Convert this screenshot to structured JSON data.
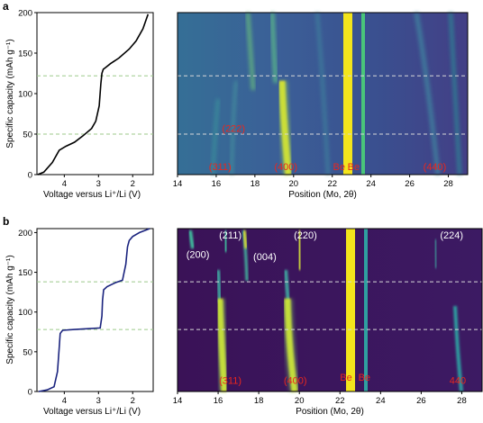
{
  "chart_data": [
    {
      "panel": "a",
      "type": "line",
      "ylabel": "Specific capacity (mAh g⁻¹)",
      "xlabel": "Voltage versus Li⁺/Li (V)",
      "xlim": [
        4.8,
        1.4
      ],
      "ylim": [
        0,
        200
      ],
      "xticks": [
        "4",
        "3",
        "2"
      ],
      "yticks": [
        "0",
        "50",
        "100",
        "150",
        "200"
      ],
      "series": [
        {
          "color": "#000000",
          "x": [
            4.78,
            4.6,
            4.35,
            4.15,
            3.95,
            3.7,
            3.45,
            3.2,
            3.08,
            2.98,
            2.93,
            2.9,
            2.86,
            2.8,
            2.65,
            2.4,
            2.1,
            1.9,
            1.7,
            1.55
          ],
          "y": [
            0,
            3,
            15,
            30,
            35,
            40,
            48,
            57,
            66,
            85,
            112,
            125,
            130,
            132,
            137,
            144,
            155,
            165,
            180,
            198
          ]
        }
      ],
      "hlines": [
        122,
        50
      ]
    },
    {
      "panel": "a",
      "type": "heatmap",
      "xlabel": "Position (Mo, 2θ)",
      "xlim": [
        14,
        29
      ],
      "xticks": [
        "14",
        "16",
        "18",
        "20",
        "22",
        "24",
        "26",
        "28"
      ],
      "peak_labels": [
        {
          "text": "(311)",
          "x": 16.2,
          "y": 10
        },
        {
          "text": "(222)",
          "x": 16.9,
          "y": 57
        },
        {
          "text": "(400)",
          "x": 19.6,
          "y": 10
        },
        {
          "text": "Be",
          "x": 22.35,
          "y": 10
        },
        {
          "text": "Be",
          "x": 23.1,
          "y": 10
        },
        {
          "text": "(440)",
          "x": 27.3,
          "y": 10
        }
      ],
      "hlines": [
        122,
        50
      ]
    },
    {
      "panel": "b",
      "type": "line",
      "ylabel": "Specific capacity (mAh g⁻¹)",
      "xlabel": "Voltage versus Li⁺/Li (V)",
      "xlim": [
        4.8,
        1.4
      ],
      "ylim": [
        0,
        205
      ],
      "xticks": [
        "4",
        "3",
        "2"
      ],
      "yticks": [
        "0",
        "50",
        "100",
        "150",
        "200"
      ],
      "series": [
        {
          "color": "#1a237e",
          "x": [
            4.75,
            4.5,
            4.3,
            4.2,
            4.15,
            4.12,
            4.05,
            3.7,
            3.3,
            2.95,
            2.9,
            2.88,
            2.85,
            2.75,
            2.5,
            2.3,
            2.2,
            2.15,
            2.1,
            2.0,
            1.8,
            1.5
          ],
          "y": [
            0,
            2,
            6,
            25,
            55,
            73,
            77,
            78,
            79,
            80,
            95,
            115,
            128,
            132,
            137,
            140,
            160,
            182,
            190,
            195,
            200,
            205
          ]
        }
      ],
      "hlines": [
        138,
        78
      ]
    },
    {
      "panel": "b",
      "type": "heatmap",
      "xlabel": "Position (Mo, 2θ)",
      "xlim": [
        14,
        29
      ],
      "xticks": [
        "14",
        "16",
        "18",
        "20",
        "22",
        "24",
        "26",
        "28"
      ],
      "peak_labels": [
        {
          "text": "(200)",
          "x": 15.0,
          "y": 173
        },
        {
          "text": "(211)",
          "x": 16.6,
          "y": 197
        },
        {
          "text": "(004)",
          "x": 18.3,
          "y": 170
        },
        {
          "text": "(220)",
          "x": 20.3,
          "y": 197
        },
        {
          "text": "(224)",
          "x": 27.5,
          "y": 197
        },
        {
          "text": "(311)",
          "x": 16.6,
          "y": 14
        },
        {
          "text": "(400)",
          "x": 19.8,
          "y": 14
        },
        {
          "text": "Be",
          "x": 22.3,
          "y": 18
        },
        {
          "text": "Be",
          "x": 23.2,
          "y": 18
        },
        {
          "text": "440",
          "x": 27.8,
          "y": 14
        }
      ],
      "hlines": [
        138,
        78
      ]
    }
  ],
  "panel_labels": [
    "a",
    "b"
  ],
  "colors": {
    "heat_bg_a": "#3a5f94",
    "heat_bg_b": "#3b1158",
    "yellow": "#f3e51c",
    "green": "#3fbf7f",
    "teal": "#2a9d8f",
    "label_red": "#e8271e",
    "guide_green": "#9cc98a"
  }
}
